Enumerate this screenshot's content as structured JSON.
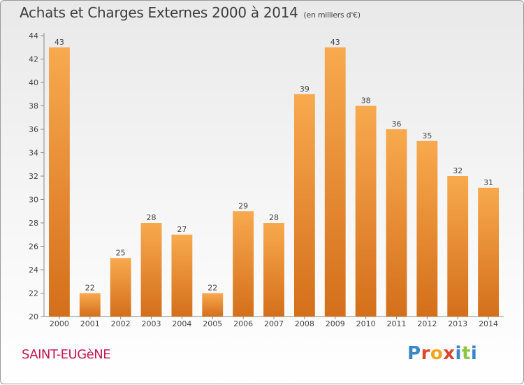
{
  "title": "Achats et Charges Externes 2000 à 2014",
  "subtitle": "(en milliers d'€)",
  "commune": "SAINT-EUGèNE",
  "logo": {
    "text": "Proxiti",
    "letter_colors": [
      "#3a86c8",
      "#e0452c",
      "#f2a51d",
      "#e0452c",
      "#3a86c8",
      "#8cc63f",
      "#3a86c8"
    ]
  },
  "colors": {
    "bar_light": "#f8a94e",
    "bar_dark": "#d46f1a",
    "commune": "#c4174f"
  },
  "chart_data": {
    "type": "bar",
    "categories": [
      "2000",
      "2001",
      "2002",
      "2003",
      "2004",
      "2005",
      "2006",
      "2007",
      "2008",
      "2009",
      "2010",
      "2011",
      "2012",
      "2013",
      "2014"
    ],
    "values": [
      43,
      22,
      25,
      28,
      27,
      22,
      29,
      28,
      39,
      43,
      38,
      36,
      35,
      32,
      31
    ],
    "ylim": [
      20,
      44
    ],
    "yticks": [
      20,
      22,
      24,
      26,
      28,
      30,
      32,
      34,
      36,
      38,
      40,
      42,
      44
    ],
    "grid": false,
    "data_labels": true
  }
}
